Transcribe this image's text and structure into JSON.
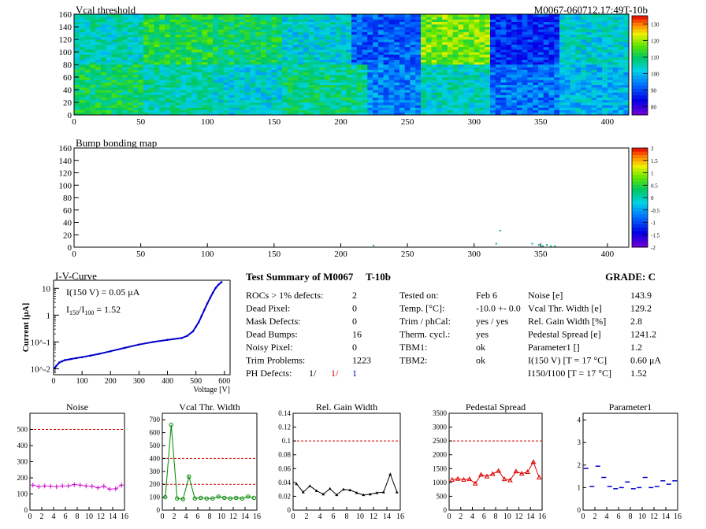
{
  "header": {
    "title": "Vcal threshold",
    "module_id": "M0067-060712.17:49T-10b"
  },
  "chart_data": [
    {
      "type": "heatmap",
      "title": "Vcal threshold",
      "x_range": [
        0,
        416
      ],
      "y_range": [
        0,
        160
      ],
      "x_ticks": [
        0,
        50,
        100,
        150,
        200,
        250,
        300,
        350,
        400
      ],
      "y_ticks": [
        0,
        20,
        40,
        60,
        80,
        100,
        120,
        140,
        160
      ],
      "colorscale_range": [
        75,
        135
      ],
      "colorscale_ticks": [
        80,
        90,
        100,
        110,
        120,
        130
      ],
      "roc_grid": {
        "cols": 8,
        "rows": 2
      },
      "roc_mean_values": [
        [
          105,
          112,
          110,
          103,
          92,
          118,
          88,
          103
        ],
        [
          110,
          106,
          103,
          108,
          95,
          104,
          94,
          100
        ]
      ]
    },
    {
      "type": "heatmap",
      "title": "Bump bonding map",
      "x_range": [
        0,
        416
      ],
      "y_range": [
        0,
        160
      ],
      "x_ticks": [
        0,
        50,
        100,
        150,
        200,
        250,
        300,
        350,
        400
      ],
      "y_ticks": [
        0,
        20,
        40,
        60,
        80,
        100,
        120,
        140,
        160
      ],
      "colorscale_range": [
        -2,
        2
      ],
      "colorscale_ticks": [
        "2",
        "1.5",
        "1",
        "0.5",
        "0",
        "-0.5",
        "-1",
        "-1.5",
        "-2"
      ],
      "points": [
        {
          "x": 319,
          "y": 26
        },
        {
          "x": 224,
          "y": 2
        },
        {
          "x": 316,
          "y": 5
        },
        {
          "x": 343,
          "y": 5
        },
        {
          "x": 348,
          "y": 3
        },
        {
          "x": 351,
          "y": 1
        },
        {
          "x": 354,
          "y": 3
        },
        {
          "x": 357,
          "y": 1
        },
        {
          "x": 360,
          "y": 1
        }
      ]
    },
    {
      "type": "line",
      "title": "I-V-Curve",
      "xlabel": "Voltage [V]",
      "ylabel": "Current [μA]",
      "y_scale": "log",
      "xlim": [
        0,
        620
      ],
      "ylim": [
        0.006,
        20
      ],
      "x_ticks": [
        0,
        100,
        200,
        300,
        400,
        500,
        600
      ],
      "y_ticks": [
        "10^-2",
        "10^-1",
        "1",
        "10"
      ],
      "series": [
        {
          "x": [
            5,
            10,
            20,
            30,
            40,
            60,
            80,
            100,
            130,
            160,
            200,
            250,
            300,
            350,
            400,
            450,
            470,
            490,
            500,
            510,
            520,
            530,
            540,
            550,
            560,
            570,
            580,
            590
          ],
          "values": [
            0.011,
            0.013,
            0.017,
            0.019,
            0.021,
            0.023,
            0.025,
            0.027,
            0.031,
            0.036,
            0.045,
            0.06,
            0.08,
            0.1,
            0.12,
            0.14,
            0.17,
            0.25,
            0.37,
            0.55,
            0.95,
            1.6,
            2.7,
            4.4,
            7.0,
            10.5,
            14.0,
            17.0
          ]
        }
      ],
      "annotations": {
        "i150": "I(150 V) = 0.05 μA",
        "ratio_label": "I150/I100 =",
        "ratio_value": "1.52"
      }
    },
    {
      "type": "scatter",
      "title": "Noise",
      "xlim": [
        0,
        16
      ],
      "ylim": [
        0,
        600
      ],
      "x_ticks": [
        0,
        2,
        4,
        6,
        8,
        10,
        12,
        14,
        16
      ],
      "y_ticks": [
        0,
        100,
        200,
        300,
        400,
        500
      ],
      "color": "#cc00cc",
      "thresholds": [
        500
      ],
      "x": [
        0,
        1,
        2,
        3,
        4,
        5,
        6,
        7,
        8,
        9,
        10,
        11,
        12,
        13,
        14,
        15
      ],
      "values": [
        155,
        145,
        150,
        148,
        145,
        150,
        150,
        158,
        155,
        150,
        148,
        138,
        148,
        130,
        132,
        155
      ]
    },
    {
      "type": "line",
      "title": "Vcal Thr. Width",
      "xlim": [
        0,
        16
      ],
      "ylim": [
        0,
        750
      ],
      "x_ticks": [
        0,
        2,
        4,
        6,
        8,
        10,
        12,
        14,
        16
      ],
      "y_ticks": [
        0,
        100,
        200,
        300,
        400,
        500,
        600,
        700
      ],
      "color": "#008800",
      "thresholds": [
        200,
        400
      ],
      "x": [
        0,
        1,
        2,
        3,
        4,
        5,
        6,
        7,
        8,
        9,
        10,
        11,
        12,
        13,
        14,
        15
      ],
      "values": [
        100,
        660,
        90,
        85,
        260,
        90,
        95,
        90,
        90,
        105,
        95,
        90,
        95,
        90,
        105,
        95
      ]
    },
    {
      "type": "line",
      "title": "Rel. Gain Width",
      "xlim": [
        0,
        16
      ],
      "ylim": [
        0,
        0.14
      ],
      "x_ticks": [
        0,
        2,
        4,
        6,
        8,
        10,
        12,
        14,
        16
      ],
      "y_ticks": [
        0,
        0.02,
        0.04,
        0.06,
        0.08,
        0.1,
        0.12,
        0.14
      ],
      "color": "#000000",
      "thresholds": [
        0.1
      ],
      "x": [
        0,
        1,
        2,
        3,
        4,
        5,
        6,
        7,
        8,
        9,
        10,
        11,
        12,
        13,
        14,
        15
      ],
      "values": [
        0.038,
        0.026,
        0.035,
        0.028,
        0.023,
        0.031,
        0.022,
        0.03,
        0.029,
        0.025,
        0.022,
        0.023,
        0.025,
        0.026,
        0.052,
        0.026
      ]
    },
    {
      "type": "line",
      "title": "Pedestal Spread",
      "xlim": [
        0,
        16
      ],
      "ylim": [
        0,
        3500
      ],
      "x_ticks": [
        0,
        2,
        4,
        6,
        8,
        10,
        12,
        14,
        16
      ],
      "y_ticks": [
        0,
        500,
        1000,
        1500,
        2000,
        2500,
        3000,
        3500
      ],
      "color": "#dd0000",
      "thresholds": [
        2500
      ],
      "x": [
        0,
        1,
        2,
        3,
        4,
        5,
        6,
        7,
        8,
        9,
        10,
        11,
        12,
        13,
        14,
        15
      ],
      "values": [
        1100,
        1130,
        1100,
        1120,
        960,
        1280,
        1220,
        1310,
        1420,
        1120,
        1080,
        1400,
        1320,
        1380,
        1740,
        1180
      ]
    },
    {
      "type": "scatter",
      "title": "Parameter1",
      "xlim": [
        0,
        16
      ],
      "ylim": [
        0,
        4.3
      ],
      "x_ticks": [
        0,
        2,
        4,
        6,
        8,
        10,
        12,
        14,
        16
      ],
      "y_ticks": [
        0,
        1,
        2,
        3,
        4
      ],
      "color": "#0000cc",
      "thresholds": [],
      "x": [
        0,
        1,
        2,
        3,
        4,
        5,
        6,
        7,
        8,
        9,
        10,
        11,
        12,
        13,
        14,
        15
      ],
      "values": [
        1.85,
        1.05,
        1.95,
        1.45,
        1.05,
        0.95,
        1.0,
        1.25,
        0.95,
        1.0,
        1.45,
        1.0,
        1.05,
        1.3,
        1.15,
        1.3
      ]
    }
  ],
  "summary": {
    "title": "Test Summary of M0067",
    "type_code": "T-10b",
    "grade": "GRADE:  C",
    "col1": [
      {
        "label": "ROCs > 1% defects:",
        "value": "2"
      },
      {
        "label": "Dead Pixel:",
        "value": "0"
      },
      {
        "label": "Mask Defects:",
        "value": "0"
      },
      {
        "label": "Dead Bumps:",
        "value": "16"
      },
      {
        "label": "Noisy Pixel:",
        "value": "0"
      },
      {
        "label": "Trim Problems:",
        "value": "1223"
      }
    ],
    "ph_defects": {
      "label": "PH Defects:",
      "v1": "1/",
      "v2": "1/",
      "v3": "1"
    },
    "col2": [
      {
        "label": "Tested on:",
        "value": "Feb 6"
      },
      {
        "label": "Temp. [°C]:",
        "value": "-10.0 +- 0.0"
      },
      {
        "label": "Trim / phCal:",
        "value": "yes / yes"
      },
      {
        "label": "Therm. cycl.:",
        "value": "yes"
      },
      {
        "label": "TBM1:",
        "value": "ok"
      },
      {
        "label": "TBM2:",
        "value": "ok"
      }
    ],
    "col3": [
      {
        "label": "Noise [e]",
        "value": "143.9"
      },
      {
        "label": "Vcal Thr. Width [e]",
        "value": "129.2"
      },
      {
        "label": "Rel. Gain Width [%]",
        "value": "2.8"
      },
      {
        "label": "Pedestal Spread [e]",
        "value": "1241.2"
      },
      {
        "label": "Parameter1 []",
        "value": "1.2"
      },
      {
        "label": "I(150 V) [T = 17 °C]",
        "value": "0.60 μA"
      },
      {
        "label": "I150/I100 [T = 17 °C]",
        "value": "1.52"
      }
    ]
  }
}
